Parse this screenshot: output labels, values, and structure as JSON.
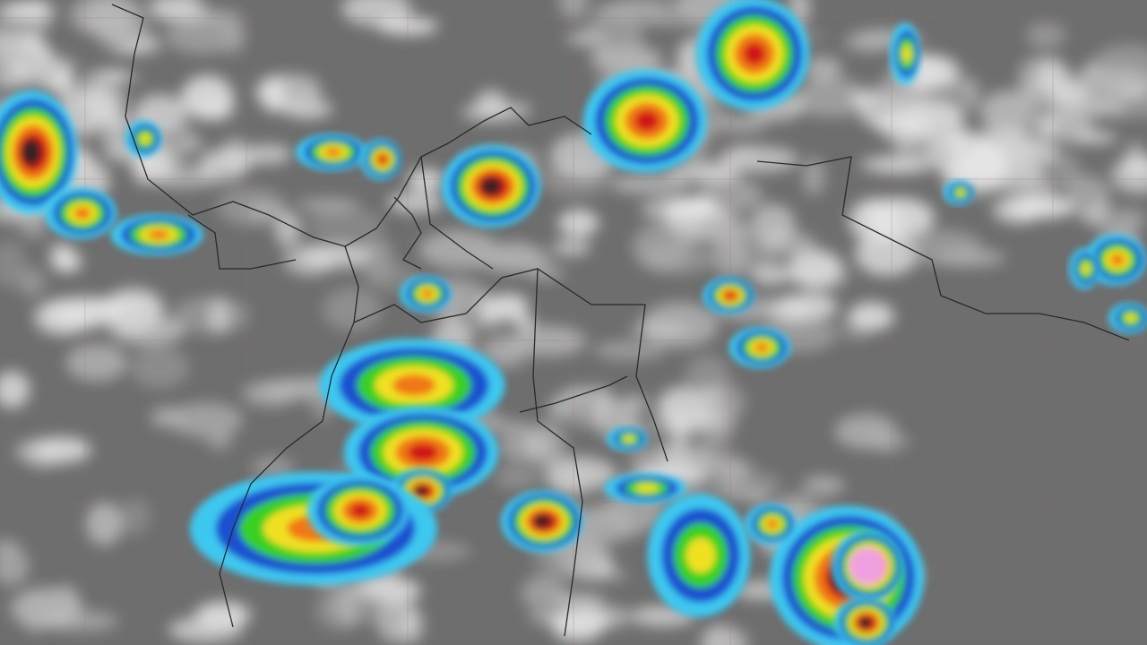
{
  "image": {
    "kind": "infrared satellite imagery",
    "palette": {
      "background": "#6e6e6e",
      "cloud_light": "#e6e6e6",
      "cloud_mid": "#b4b4b4",
      "cold_blue": "#1a4fd0",
      "cyan": "#3cc8f0",
      "green": "#38d020",
      "yellow": "#f0e020",
      "orange": "#f07818",
      "red": "#d01818",
      "dark_core": "#3a2020",
      "extreme_pink": "#f0a0e0",
      "coastline": "#2a2a2a",
      "grid": "#a07060"
    }
  }
}
